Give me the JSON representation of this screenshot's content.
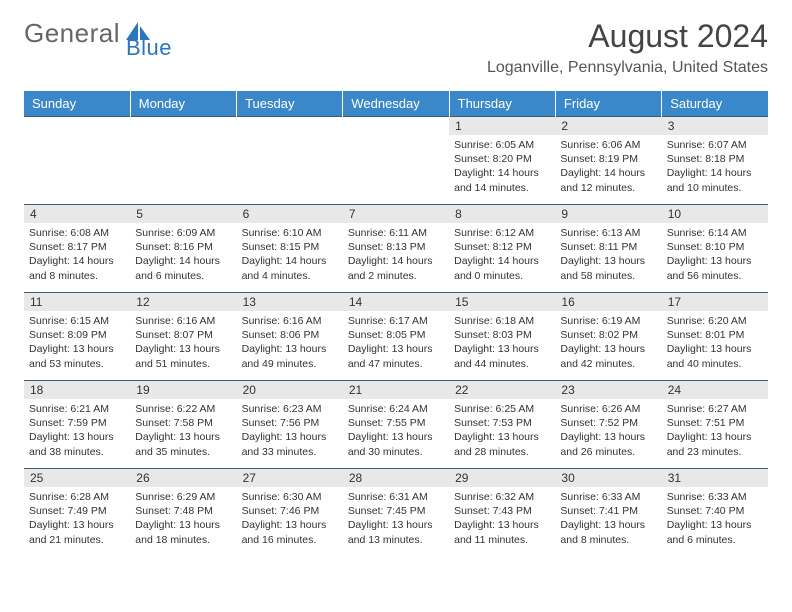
{
  "logo": {
    "text1": "General",
    "text2": "Blue"
  },
  "title": "August 2024",
  "location": "Loganville, Pennsylvania, United States",
  "colors": {
    "header_bg": "#3a88c9",
    "header_text": "#ffffff",
    "daynum_bg": "#e8e8e8",
    "border": "#3a5a7a",
    "logo_blue": "#2b77bd",
    "logo_gray": "#666666"
  },
  "day_headers": [
    "Sunday",
    "Monday",
    "Tuesday",
    "Wednesday",
    "Thursday",
    "Friday",
    "Saturday"
  ],
  "weeks": [
    [
      {
        "n": "",
        "sunrise": "",
        "sunset": "",
        "daylight": ""
      },
      {
        "n": "",
        "sunrise": "",
        "sunset": "",
        "daylight": ""
      },
      {
        "n": "",
        "sunrise": "",
        "sunset": "",
        "daylight": ""
      },
      {
        "n": "",
        "sunrise": "",
        "sunset": "",
        "daylight": ""
      },
      {
        "n": "1",
        "sunrise": "Sunrise: 6:05 AM",
        "sunset": "Sunset: 8:20 PM",
        "daylight": "Daylight: 14 hours and 14 minutes."
      },
      {
        "n": "2",
        "sunrise": "Sunrise: 6:06 AM",
        "sunset": "Sunset: 8:19 PM",
        "daylight": "Daylight: 14 hours and 12 minutes."
      },
      {
        "n": "3",
        "sunrise": "Sunrise: 6:07 AM",
        "sunset": "Sunset: 8:18 PM",
        "daylight": "Daylight: 14 hours and 10 minutes."
      }
    ],
    [
      {
        "n": "4",
        "sunrise": "Sunrise: 6:08 AM",
        "sunset": "Sunset: 8:17 PM",
        "daylight": "Daylight: 14 hours and 8 minutes."
      },
      {
        "n": "5",
        "sunrise": "Sunrise: 6:09 AM",
        "sunset": "Sunset: 8:16 PM",
        "daylight": "Daylight: 14 hours and 6 minutes."
      },
      {
        "n": "6",
        "sunrise": "Sunrise: 6:10 AM",
        "sunset": "Sunset: 8:15 PM",
        "daylight": "Daylight: 14 hours and 4 minutes."
      },
      {
        "n": "7",
        "sunrise": "Sunrise: 6:11 AM",
        "sunset": "Sunset: 8:13 PM",
        "daylight": "Daylight: 14 hours and 2 minutes."
      },
      {
        "n": "8",
        "sunrise": "Sunrise: 6:12 AM",
        "sunset": "Sunset: 8:12 PM",
        "daylight": "Daylight: 14 hours and 0 minutes."
      },
      {
        "n": "9",
        "sunrise": "Sunrise: 6:13 AM",
        "sunset": "Sunset: 8:11 PM",
        "daylight": "Daylight: 13 hours and 58 minutes."
      },
      {
        "n": "10",
        "sunrise": "Sunrise: 6:14 AM",
        "sunset": "Sunset: 8:10 PM",
        "daylight": "Daylight: 13 hours and 56 minutes."
      }
    ],
    [
      {
        "n": "11",
        "sunrise": "Sunrise: 6:15 AM",
        "sunset": "Sunset: 8:09 PM",
        "daylight": "Daylight: 13 hours and 53 minutes."
      },
      {
        "n": "12",
        "sunrise": "Sunrise: 6:16 AM",
        "sunset": "Sunset: 8:07 PM",
        "daylight": "Daylight: 13 hours and 51 minutes."
      },
      {
        "n": "13",
        "sunrise": "Sunrise: 6:16 AM",
        "sunset": "Sunset: 8:06 PM",
        "daylight": "Daylight: 13 hours and 49 minutes."
      },
      {
        "n": "14",
        "sunrise": "Sunrise: 6:17 AM",
        "sunset": "Sunset: 8:05 PM",
        "daylight": "Daylight: 13 hours and 47 minutes."
      },
      {
        "n": "15",
        "sunrise": "Sunrise: 6:18 AM",
        "sunset": "Sunset: 8:03 PM",
        "daylight": "Daylight: 13 hours and 44 minutes."
      },
      {
        "n": "16",
        "sunrise": "Sunrise: 6:19 AM",
        "sunset": "Sunset: 8:02 PM",
        "daylight": "Daylight: 13 hours and 42 minutes."
      },
      {
        "n": "17",
        "sunrise": "Sunrise: 6:20 AM",
        "sunset": "Sunset: 8:01 PM",
        "daylight": "Daylight: 13 hours and 40 minutes."
      }
    ],
    [
      {
        "n": "18",
        "sunrise": "Sunrise: 6:21 AM",
        "sunset": "Sunset: 7:59 PM",
        "daylight": "Daylight: 13 hours and 38 minutes."
      },
      {
        "n": "19",
        "sunrise": "Sunrise: 6:22 AM",
        "sunset": "Sunset: 7:58 PM",
        "daylight": "Daylight: 13 hours and 35 minutes."
      },
      {
        "n": "20",
        "sunrise": "Sunrise: 6:23 AM",
        "sunset": "Sunset: 7:56 PM",
        "daylight": "Daylight: 13 hours and 33 minutes."
      },
      {
        "n": "21",
        "sunrise": "Sunrise: 6:24 AM",
        "sunset": "Sunset: 7:55 PM",
        "daylight": "Daylight: 13 hours and 30 minutes."
      },
      {
        "n": "22",
        "sunrise": "Sunrise: 6:25 AM",
        "sunset": "Sunset: 7:53 PM",
        "daylight": "Daylight: 13 hours and 28 minutes."
      },
      {
        "n": "23",
        "sunrise": "Sunrise: 6:26 AM",
        "sunset": "Sunset: 7:52 PM",
        "daylight": "Daylight: 13 hours and 26 minutes."
      },
      {
        "n": "24",
        "sunrise": "Sunrise: 6:27 AM",
        "sunset": "Sunset: 7:51 PM",
        "daylight": "Daylight: 13 hours and 23 minutes."
      }
    ],
    [
      {
        "n": "25",
        "sunrise": "Sunrise: 6:28 AM",
        "sunset": "Sunset: 7:49 PM",
        "daylight": "Daylight: 13 hours and 21 minutes."
      },
      {
        "n": "26",
        "sunrise": "Sunrise: 6:29 AM",
        "sunset": "Sunset: 7:48 PM",
        "daylight": "Daylight: 13 hours and 18 minutes."
      },
      {
        "n": "27",
        "sunrise": "Sunrise: 6:30 AM",
        "sunset": "Sunset: 7:46 PM",
        "daylight": "Daylight: 13 hours and 16 minutes."
      },
      {
        "n": "28",
        "sunrise": "Sunrise: 6:31 AM",
        "sunset": "Sunset: 7:45 PM",
        "daylight": "Daylight: 13 hours and 13 minutes."
      },
      {
        "n": "29",
        "sunrise": "Sunrise: 6:32 AM",
        "sunset": "Sunset: 7:43 PM",
        "daylight": "Daylight: 13 hours and 11 minutes."
      },
      {
        "n": "30",
        "sunrise": "Sunrise: 6:33 AM",
        "sunset": "Sunset: 7:41 PM",
        "daylight": "Daylight: 13 hours and 8 minutes."
      },
      {
        "n": "31",
        "sunrise": "Sunrise: 6:33 AM",
        "sunset": "Sunset: 7:40 PM",
        "daylight": "Daylight: 13 hours and 6 minutes."
      }
    ]
  ]
}
